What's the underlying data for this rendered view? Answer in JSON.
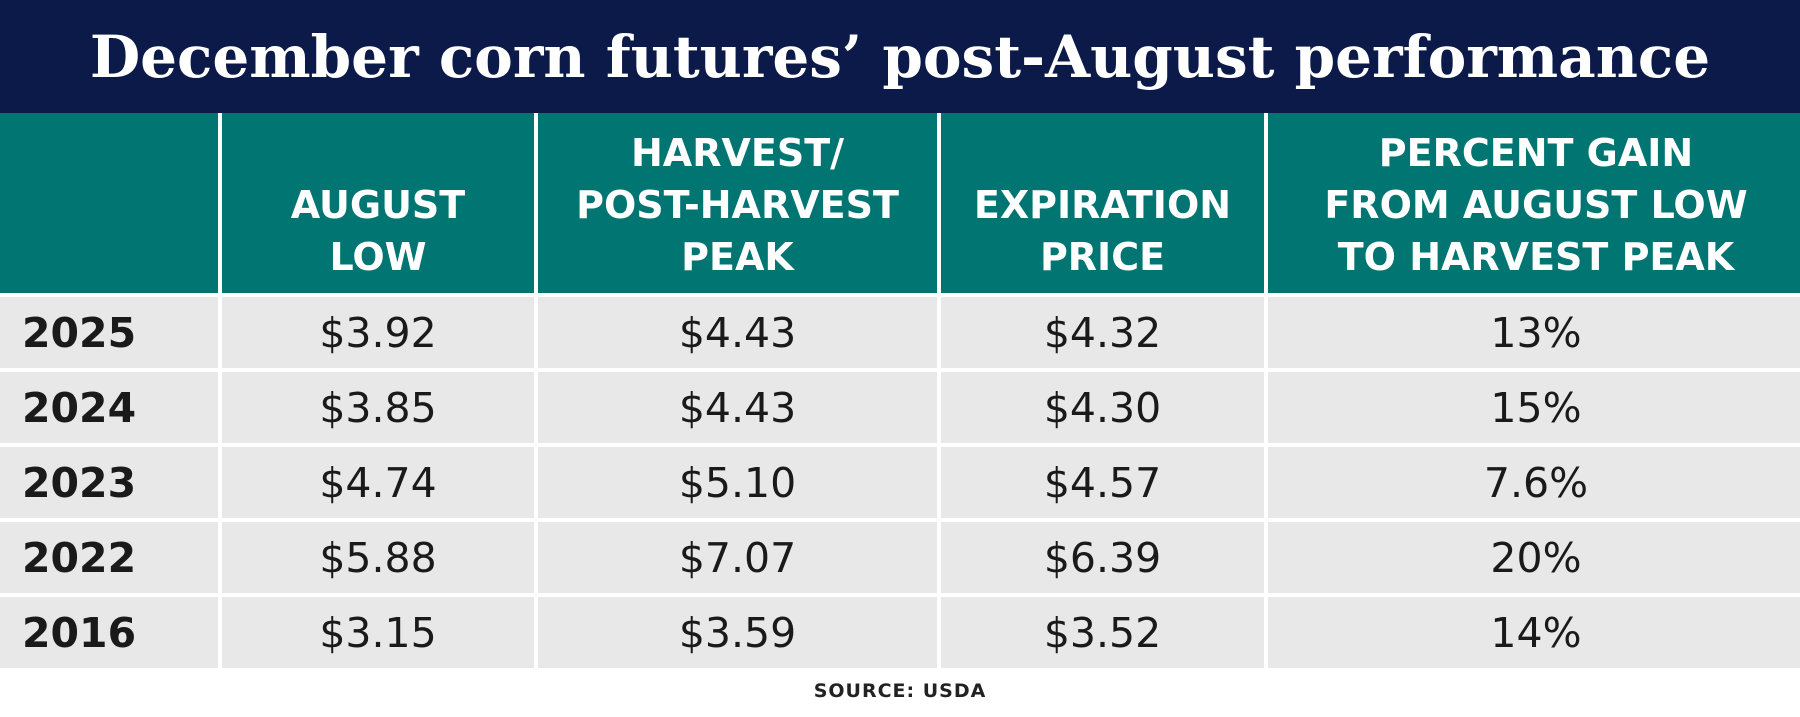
{
  "title": "December corn futures’ post-August performance",
  "table": {
    "headers": [
      [
        "AUGUST",
        "LOW"
      ],
      [
        "HARVEST/",
        "POST-HARVEST",
        "PEAK"
      ],
      [
        "EXPIRATION",
        "PRICE"
      ],
      [
        "PERCENT GAIN",
        "FROM AUGUST LOW",
        "TO HARVEST PEAK"
      ]
    ],
    "rows": [
      [
        "2025",
        "$3.92",
        "$4.43",
        "$4.32",
        "13%"
      ],
      [
        "2024",
        "$3.85",
        "$4.43",
        "$4.30",
        "15%"
      ],
      [
        "2023",
        "$4.74",
        "$5.10",
        "$4.57",
        "7.6%"
      ],
      [
        "2022",
        "$5.88",
        "$7.07",
        "$6.39",
        "20%"
      ],
      [
        "2016",
        "$3.15",
        "$3.59",
        "$3.52",
        "14%"
      ]
    ]
  },
  "source": "SOURCE: USDA"
}
